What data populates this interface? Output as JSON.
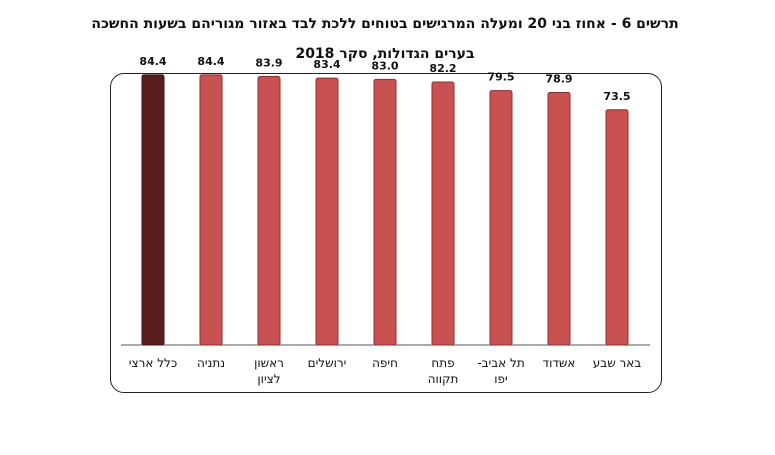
{
  "chart_data": {
    "type": "bar",
    "title_line1": "תרשים 6 - אחוז בני 20 ומעלה המרגישים בטוחים ללכת לבד באזור מגוריהם בשעות החשכה",
    "title_line2": "בערים הגדולות, סקר 2018",
    "categories": [
      [
        "כלל ארצי"
      ],
      [
        "נתניה"
      ],
      [
        "ראשון",
        "לציון"
      ],
      [
        "ירושלים"
      ],
      [
        "חיפה"
      ],
      [
        "פתח",
        "תקווה"
      ],
      [
        "תל אביב-",
        "יפו"
      ],
      [
        "אשדוד"
      ],
      [
        "באר שבע"
      ]
    ],
    "values": [
      84.4,
      84.4,
      83.9,
      83.4,
      83.0,
      82.2,
      79.5,
      78.9,
      73.5
    ],
    "value_labels": [
      "84.4",
      "84.4",
      "83.9",
      "83.4",
      "83.0",
      "82.2",
      "79.5",
      "78.9",
      "73.5"
    ],
    "ylim": [
      0,
      100
    ],
    "grid": false,
    "colors": {
      "highlight": "#5a1e1e",
      "highlight_edge": "#3a0f0f",
      "bar": "#c85252",
      "bar_edge": "#8f2e2e"
    }
  }
}
